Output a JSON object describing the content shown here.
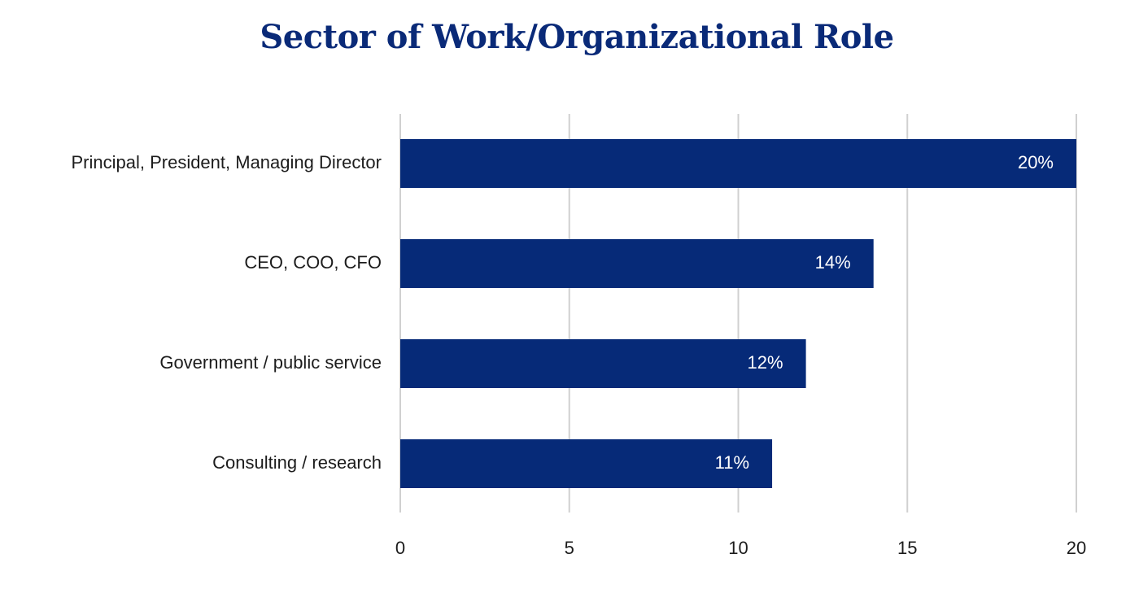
{
  "chart_data": {
    "type": "bar",
    "orientation": "horizontal",
    "title": "Sector of Work/Organizational Role",
    "categories": [
      "Principal, President, Managing Director",
      "CEO, COO, CFO",
      "Government / public service",
      "Consulting / research"
    ],
    "values": [
      20,
      14,
      12,
      11
    ],
    "data_labels": [
      "20%",
      "14%",
      "12%",
      "11%"
    ],
    "xlim": [
      0,
      20
    ],
    "xticks": [
      0,
      5,
      10,
      15,
      20
    ],
    "xlabel": "",
    "ylabel": "",
    "grid": true,
    "legend": "none",
    "bar_color": "#062a78",
    "title_color": "#0a2a78"
  }
}
